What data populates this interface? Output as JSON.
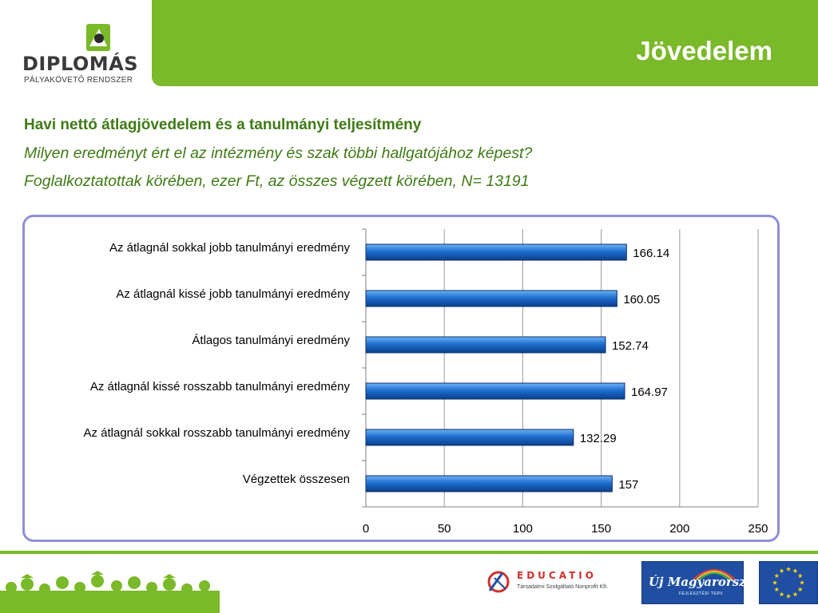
{
  "logo": {
    "name": "DIPLOMÁS",
    "subtitle": "PÁLYAKÖVETŐ  RENDSZER"
  },
  "header": {
    "title": "Jövedelem"
  },
  "content": {
    "heading": "Havi nettó átlagjövedelem és a tanulmányi teljesítmény",
    "subtitle1": "Milyen eredményt ért el az intézmény és szak többi hallgatójához képest?",
    "subtitle2": "Foglalkoztatottak körében, ezer Ft, az összes végzett körében, N= 13191"
  },
  "chart_data": {
    "type": "bar",
    "orientation": "horizontal",
    "categories": [
      "Az átlagnál sokkal jobb tanulmányi eredmény",
      "Az átlagnál kissé jobb tanulmányi eredmény",
      "Átlagos tanulmányi eredmény",
      "Az átlagnál kissé rosszabb tanulmányi eredmény",
      "Az átlagnál sokkal rosszabb tanulmányi eredmény",
      "Végzettek összesen"
    ],
    "values": [
      166.14,
      160.05,
      152.74,
      164.97,
      132.29,
      157
    ],
    "value_labels": [
      "166.14",
      "160.05",
      "152.74",
      "164.97",
      "132.29",
      "157"
    ],
    "xlim": [
      0,
      250
    ],
    "xticks": [
      0,
      50,
      100,
      150,
      200,
      250
    ],
    "grid": true,
    "bar_color": "#1f6fd0"
  },
  "footer": {
    "educatio_name": "EDUCATIO",
    "educatio_sub": "Társadalmi Szolgáltató Nonprofit Kft.",
    "ujm_text": "Új Magyarország",
    "ujm_sub": "FEJLESZTÉSI TERV"
  },
  "colors": {
    "brand_green": "#7ab929",
    "text_green": "#3f7a16",
    "frame": "#8f8fd6"
  }
}
